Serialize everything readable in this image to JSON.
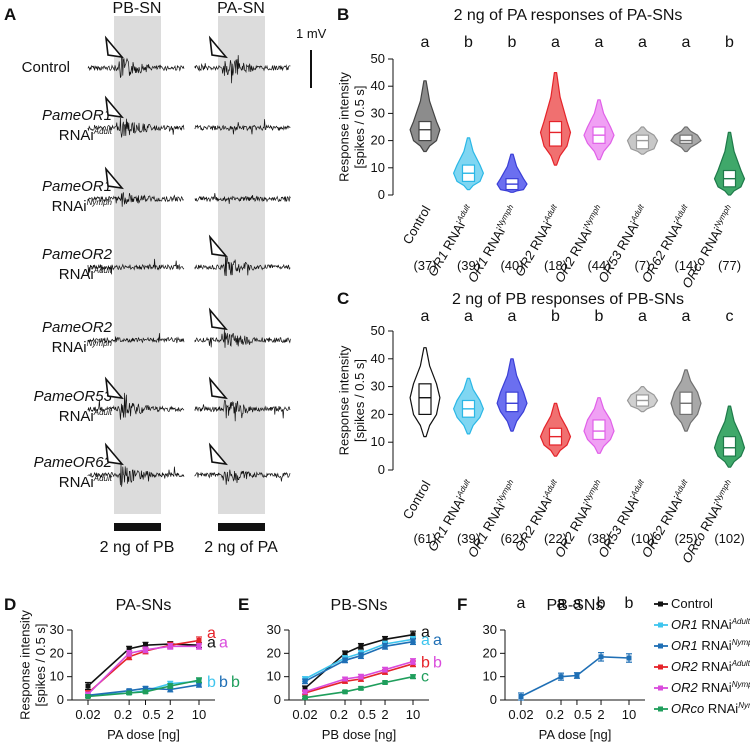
{
  "figure": {
    "panel_A": {
      "letter": "A",
      "col_labels": [
        "PB-SN",
        "PA-SN"
      ],
      "scale_label": "1 mV",
      "rows": [
        {
          "gene": "",
          "plain": "Control",
          "stage": ""
        },
        {
          "gene": "PameOR1",
          "plain": "RNAi",
          "stage": "Adult"
        },
        {
          "gene": "PameOR1",
          "plain": "RNAi",
          "stage": "Nymph"
        },
        {
          "gene": "PameOR2",
          "plain": "RNAi",
          "stage": "Adult"
        },
        {
          "gene": "PameOR2",
          "plain": "RNAi",
          "stage": "Nymph"
        },
        {
          "gene": "PameOR53",
          "plain": "RNAi",
          "stage": "Adult"
        },
        {
          "gene": "PameOR62",
          "plain": "RNAi",
          "stage": "Adult"
        }
      ],
      "stimulus_labels": [
        "2 ng of PB",
        "2 ng of PA"
      ]
    },
    "legend": {
      "items": [
        {
          "label": "Control",
          "gene": "",
          "stage": "",
          "color": "#111111"
        },
        {
          "label": "RNAi",
          "gene": "OR1",
          "stage": "Adult",
          "color": "#3fc5ee"
        },
        {
          "label": "RNAi",
          "gene": "OR1",
          "stage": "Nymph",
          "color": "#1f6fb5"
        },
        {
          "label": "RNAi",
          "gene": "OR2",
          "stage": "Adult",
          "color": "#e5232a"
        },
        {
          "label": "RNAi",
          "gene": "OR2",
          "stage": "Nymph",
          "color": "#d94bdc"
        },
        {
          "label": "RNAi",
          "gene": "ORco",
          "stage": "Nymph",
          "color": "#1f9e5c"
        }
      ]
    }
  },
  "chart_data": [
    {
      "panel": "B",
      "type": "violin",
      "title": "2 ng of PA responses of PA-SNs",
      "ylabel_lines": [
        "Response intensity",
        "[spikes / 0.5 s]"
      ],
      "ylim": [
        0,
        50
      ],
      "yticks": [
        0,
        10,
        20,
        30,
        40,
        50
      ],
      "groups": [
        {
          "gene": "",
          "name": "Control",
          "stage": "",
          "n": "(37)",
          "sig": "a",
          "min": 16,
          "q1": 20,
          "median": 24,
          "q3": 27,
          "max": 42,
          "color": "#444444",
          "fill": "#8c8c8c"
        },
        {
          "gene": "OR1",
          "name": "RNAi",
          "stage": "Adult",
          "n": "(39)",
          "sig": "b",
          "min": 2,
          "q1": 5,
          "median": 8,
          "q3": 11,
          "max": 21,
          "color": "#2ab7e6",
          "fill": "#7fd6f2"
        },
        {
          "gene": "OR1",
          "name": "RNAi",
          "stage": "Nymph",
          "n": "(40)",
          "sig": "b",
          "min": 1,
          "q1": 2,
          "median": 4,
          "q3": 6,
          "max": 15,
          "color": "#3b3fd6",
          "fill": "#6b6ff0"
        },
        {
          "gene": "OR2",
          "name": "RNAi",
          "stage": "Adult",
          "n": "(18)",
          "sig": "a",
          "min": 11,
          "q1": 18,
          "median": 23,
          "q3": 27,
          "max": 45,
          "color": "#e5232a",
          "fill": "#f07070"
        },
        {
          "gene": "OR2",
          "name": "RNAi",
          "stage": "Nymph",
          "n": "(44)",
          "sig": "a",
          "min": 13,
          "q1": 19,
          "median": 22,
          "q3": 25,
          "max": 35,
          "color": "#e060e8",
          "fill": "#f0a0f4"
        },
        {
          "gene": "OR53",
          "name": "RNAi",
          "stage": "Adult",
          "n": "(7)",
          "sig": "a",
          "min": 15,
          "q1": 17,
          "median": 20,
          "q3": 22,
          "max": 25,
          "color": "#9a9a9a",
          "fill": "#c8c8c8"
        },
        {
          "gene": "OR62",
          "name": "RNAi",
          "stage": "Adult",
          "n": "(14)",
          "sig": "a",
          "min": 16,
          "q1": 19,
          "median": 20,
          "q3": 22,
          "max": 25,
          "color": "#707070",
          "fill": "#a8a8a8"
        },
        {
          "gene": "ORco",
          "name": "RNAi",
          "stage": "Nymph",
          "n": "(77)",
          "sig": "b",
          "min": 0,
          "q1": 3,
          "median": 6,
          "q3": 9,
          "max": 23,
          "color": "#1f7a4a",
          "fill": "#3fa86a"
        }
      ]
    },
    {
      "panel": "C",
      "type": "violin",
      "title": "2 ng of PB responses of PB-SNs",
      "ylabel_lines": [
        "Response intensity",
        "[spikes / 0.5 s]"
      ],
      "ylim": [
        0,
        50
      ],
      "yticks": [
        0,
        10,
        20,
        30,
        40,
        50
      ],
      "groups": [
        {
          "gene": "",
          "name": "Control",
          "stage": "",
          "n": "(61)",
          "sig": "a",
          "min": 12,
          "q1": 20,
          "median": 26,
          "q3": 31,
          "max": 44,
          "color": "#111111",
          "fill": "#ffffff"
        },
        {
          "gene": "OR1",
          "name": "RNAi",
          "stage": "Adult",
          "n": "(39)",
          "sig": "a",
          "min": 13,
          "q1": 19,
          "median": 22,
          "q3": 25,
          "max": 33,
          "color": "#2ab7e6",
          "fill": "#7fd6f2"
        },
        {
          "gene": "OR1",
          "name": "RNAi",
          "stage": "Nymph",
          "n": "(62)",
          "sig": "a",
          "min": 14,
          "q1": 21,
          "median": 24,
          "q3": 28,
          "max": 40,
          "color": "#3b3fd6",
          "fill": "#6b6ff0"
        },
        {
          "gene": "OR2",
          "name": "RNAi",
          "stage": "Adult",
          "n": "(22)",
          "sig": "b",
          "min": 5,
          "q1": 9,
          "median": 12,
          "q3": 15,
          "max": 24,
          "color": "#e5232a",
          "fill": "#f07070"
        },
        {
          "gene": "OR2",
          "name": "RNAi",
          "stage": "Nymph",
          "n": "(38)",
          "sig": "b",
          "min": 6,
          "q1": 11,
          "median": 14,
          "q3": 18,
          "max": 26,
          "color": "#e060e8",
          "fill": "#f0a0f4"
        },
        {
          "gene": "OR53",
          "name": "RNAi",
          "stage": "Adult",
          "n": "(10)",
          "sig": "a",
          "min": 21,
          "q1": 23,
          "median": 25,
          "q3": 27,
          "max": 30,
          "color": "#9a9a9a",
          "fill": "#d0d0d0"
        },
        {
          "gene": "OR62",
          "name": "RNAi",
          "stage": "Adult",
          "n": "(25)",
          "sig": "a",
          "min": 14,
          "q1": 20,
          "median": 24,
          "q3": 28,
          "max": 36,
          "color": "#707070",
          "fill": "#a8a8a8"
        },
        {
          "gene": "ORco",
          "name": "RNAi",
          "stage": "Nymph",
          "n": "(102)",
          "sig": "c",
          "min": 1,
          "q1": 5,
          "median": 8,
          "q3": 12,
          "max": 23,
          "color": "#1f7a4a",
          "fill": "#3fa86a"
        }
      ]
    },
    {
      "panel": "D",
      "type": "line",
      "title": "PA-SNs",
      "xlabel": "PA dose [ng]",
      "ylabel_lines": [
        "Response intensity",
        "[spikes / 0.5 s]"
      ],
      "x": [
        0.02,
        0.2,
        0.5,
        2,
        10
      ],
      "xtick_labels": [
        "0.02",
        "0.2",
        "0.5",
        "2",
        "10"
      ],
      "ylim": [
        0,
        30
      ],
      "yticks": [
        0,
        10,
        20,
        30
      ],
      "series": [
        {
          "name": "Control",
          "color": "#111111",
          "values": [
            6,
            22,
            23.5,
            24,
            23.5
          ],
          "err": [
            1.5,
            1,
            1.2,
            1,
            1
          ]
        },
        {
          "name": "OR1 RNAi Adult",
          "color": "#3fc5ee",
          "values": [
            2,
            3,
            4,
            7,
            8
          ],
          "err": [
            0.5,
            0.6,
            0.8,
            1,
            1
          ]
        },
        {
          "name": "OR1 RNAi Nymph",
          "color": "#1f6fb5",
          "values": [
            2,
            4,
            5,
            4.5,
            6.5
          ],
          "err": [
            0.5,
            0.6,
            0.8,
            1,
            1
          ]
        },
        {
          "name": "OR2 RNAi Adult",
          "color": "#e5232a",
          "values": [
            3,
            18.5,
            21,
            23.5,
            25.5
          ],
          "err": [
            1,
            1.2,
            1.2,
            1.2,
            1.5
          ]
        },
        {
          "name": "OR2 RNAi Nymph",
          "color": "#d94bdc",
          "values": [
            2.5,
            20,
            21.5,
            23,
            23
          ],
          "err": [
            0.8,
            1.2,
            1.2,
            1.2,
            1.2
          ]
        },
        {
          "name": "ORco RNAi Nymph",
          "color": "#1f9e5c",
          "values": [
            1.5,
            3,
            3.5,
            6,
            8.5
          ],
          "err": [
            0.5,
            0.6,
            0.6,
            1,
            1
          ]
        }
      ],
      "sig_labels": [
        {
          "text": "a",
          "color": "#e5232a"
        },
        {
          "text": "a",
          "color": "#111111"
        },
        {
          "text": "a",
          "color": "#d94bdc"
        },
        {
          "text": "b",
          "color": "#3fc5ee"
        },
        {
          "text": "b",
          "color": "#1f6fb5"
        },
        {
          "text": "b",
          "color": "#1f9e5c"
        }
      ]
    },
    {
      "panel": "E",
      "type": "line",
      "title": "PB-SNs",
      "xlabel": "PB dose [ng]",
      "x": [
        0.02,
        0.2,
        0.5,
        2,
        10
      ],
      "xtick_labels": [
        "0.02",
        "0.2",
        "0.5",
        "2",
        "10"
      ],
      "ylim": [
        0,
        30
      ],
      "yticks": [
        0,
        10,
        20,
        30
      ],
      "series": [
        {
          "name": "Control",
          "color": "#111111",
          "values": [
            5,
            20,
            23,
            26,
            28
          ],
          "err": [
            1,
            1,
            1.2,
            1.2,
            1.5
          ]
        },
        {
          "name": "OR1 RNAi Adult",
          "color": "#3fc5ee",
          "values": [
            9,
            18,
            20,
            24,
            26
          ],
          "err": [
            1,
            1,
            1.2,
            1.2,
            1.2
          ]
        },
        {
          "name": "OR1 RNAi Nymph",
          "color": "#1f6fb5",
          "values": [
            8,
            17,
            19,
            23,
            25
          ],
          "err": [
            1,
            1,
            1.2,
            1.2,
            1.2
          ]
        },
        {
          "name": "OR2 RNAi Adult",
          "color": "#e5232a",
          "values": [
            3,
            8,
            9,
            12,
            15.5
          ],
          "err": [
            0.8,
            0.8,
            1,
            1,
            1.2
          ]
        },
        {
          "name": "OR2 RNAi Nymph",
          "color": "#d94bdc",
          "values": [
            3.5,
            9,
            10,
            13,
            16.5
          ],
          "err": [
            0.8,
            0.8,
            1,
            1,
            1.2
          ]
        },
        {
          "name": "ORco RNAi Nymph",
          "color": "#1f9e5c",
          "values": [
            1,
            3.5,
            5,
            7.5,
            10
          ],
          "err": [
            0.4,
            0.5,
            0.6,
            0.6,
            0.8
          ]
        }
      ],
      "sig_labels": [
        {
          "text": "a",
          "color": "#111111"
        },
        {
          "text": "a",
          "color": "#3fc5ee"
        },
        {
          "text": "a",
          "color": "#1f6fb5"
        },
        {
          "text": "b",
          "color": "#e5232a"
        },
        {
          "text": "b",
          "color": "#d94bdc"
        },
        {
          "text": "c",
          "color": "#1f9e5c"
        }
      ]
    },
    {
      "panel": "F",
      "type": "line",
      "title": "PB-SNs",
      "xlabel": "PA dose [ng]",
      "x": [
        0.02,
        0.2,
        0.5,
        2,
        10
      ],
      "xtick_labels": [
        "0.02",
        "0.2",
        "0.5",
        "2",
        "10"
      ],
      "ylim": [
        0,
        30
      ],
      "yticks": [
        0,
        10,
        20,
        30
      ],
      "series": [
        {
          "name": "Control",
          "color": "#1f6fb5",
          "values": [
            1.5,
            10,
            10.5,
            18.5,
            18
          ],
          "err": [
            1.5,
            1.5,
            1.2,
            1.8,
            1.8
          ]
        }
      ],
      "sig_letters": [
        "a",
        "a",
        "a",
        "b",
        "b"
      ]
    }
  ]
}
